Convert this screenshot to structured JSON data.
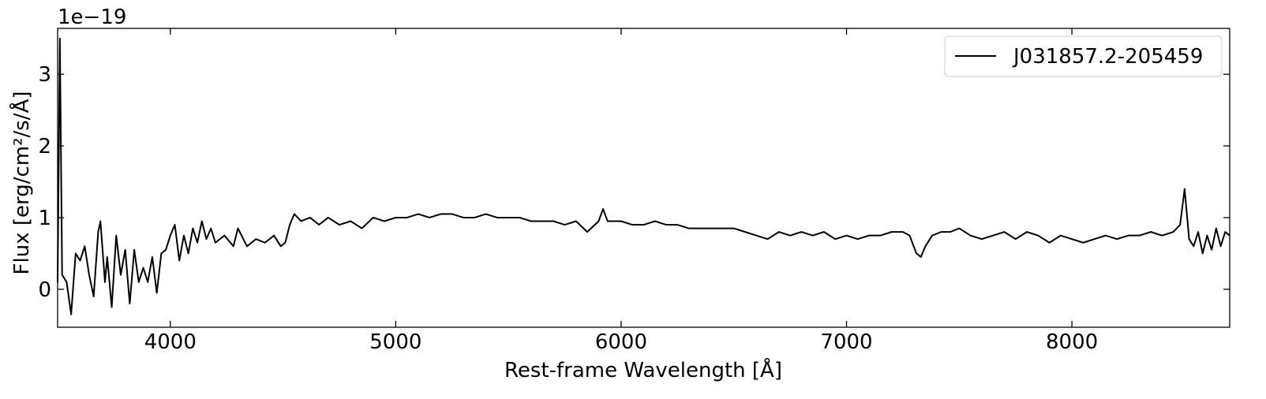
{
  "chart_data": {
    "type": "line",
    "x_label": "Rest-frame Wavelength [Å]",
    "y_label": "Flux [erg/cm²/s/Å]",
    "y_offset_text": "1e−19",
    "x": [
      3500,
      3510,
      3520,
      3540,
      3560,
      3580,
      3600,
      3620,
      3640,
      3660,
      3680,
      3690,
      3710,
      3720,
      3740,
      3760,
      3780,
      3800,
      3820,
      3840,
      3860,
      3880,
      3900,
      3920,
      3940,
      3960,
      3980,
      4000,
      4020,
      4040,
      4060,
      4080,
      4100,
      4120,
      4140,
      4160,
      4180,
      4200,
      4240,
      4280,
      4300,
      4340,
      4380,
      4420,
      4460,
      4490,
      4510,
      4530,
      4550,
      4580,
      4620,
      4660,
      4700,
      4750,
      4800,
      4850,
      4900,
      4950,
      5000,
      5050,
      5100,
      5150,
      5200,
      5250,
      5300,
      5350,
      5400,
      5450,
      5500,
      5550,
      5600,
      5650,
      5700,
      5750,
      5800,
      5850,
      5900,
      5920,
      5940,
      6000,
      6050,
      6100,
      6150,
      6200,
      6250,
      6300,
      6350,
      6400,
      6450,
      6500,
      6550,
      6600,
      6650,
      6700,
      6750,
      6800,
      6850,
      6900,
      6950,
      7000,
      7050,
      7100,
      7150,
      7200,
      7250,
      7280,
      7310,
      7330,
      7350,
      7380,
      7420,
      7460,
      7500,
      7550,
      7600,
      7650,
      7700,
      7750,
      7800,
      7850,
      7900,
      7950,
      8000,
      8050,
      8100,
      8150,
      8200,
      8250,
      8300,
      8350,
      8400,
      8450,
      8480,
      8500,
      8520,
      8540,
      8560,
      8580,
      8600,
      8620,
      8640,
      8660,
      8680,
      8700
    ],
    "series": [
      {
        "name": "J031857.2-205459",
        "color": "#000000",
        "values": [
          0.1,
          3.5,
          0.2,
          0.1,
          -0.35,
          0.5,
          0.4,
          0.6,
          0.2,
          -0.1,
          0.8,
          0.95,
          0.1,
          0.45,
          -0.25,
          0.75,
          0.2,
          0.55,
          -0.2,
          0.55,
          0.1,
          0.3,
          0.1,
          0.45,
          -0.05,
          0.5,
          0.55,
          0.75,
          0.9,
          0.4,
          0.75,
          0.5,
          0.85,
          0.65,
          0.95,
          0.7,
          0.85,
          0.65,
          0.75,
          0.6,
          0.85,
          0.6,
          0.7,
          0.65,
          0.75,
          0.6,
          0.65,
          0.9,
          1.05,
          0.95,
          1.0,
          0.9,
          1.0,
          0.9,
          0.95,
          0.85,
          1.0,
          0.95,
          1.0,
          1.0,
          1.05,
          1.0,
          1.05,
          1.05,
          1.0,
          1.0,
          1.05,
          1.0,
          1.0,
          1.0,
          0.95,
          0.95,
          0.95,
          0.9,
          0.95,
          0.8,
          0.95,
          1.12,
          0.95,
          0.95,
          0.9,
          0.9,
          0.95,
          0.9,
          0.9,
          0.85,
          0.85,
          0.85,
          0.85,
          0.85,
          0.8,
          0.75,
          0.7,
          0.8,
          0.75,
          0.8,
          0.75,
          0.8,
          0.7,
          0.75,
          0.7,
          0.75,
          0.75,
          0.8,
          0.8,
          0.75,
          0.5,
          0.45,
          0.6,
          0.75,
          0.8,
          0.8,
          0.85,
          0.75,
          0.7,
          0.75,
          0.8,
          0.7,
          0.8,
          0.75,
          0.65,
          0.75,
          0.7,
          0.65,
          0.7,
          0.75,
          0.7,
          0.75,
          0.75,
          0.8,
          0.75,
          0.8,
          0.9,
          1.4,
          0.7,
          0.6,
          0.8,
          0.5,
          0.75,
          0.55,
          0.85,
          0.6,
          0.8,
          0.75
        ]
      }
    ],
    "xlim": [
      3500,
      8700
    ],
    "ylim": [
      -0.53,
      3.64
    ],
    "xticks": [
      4000,
      5000,
      6000,
      7000,
      8000
    ],
    "yticks": [
      0,
      1,
      2,
      3
    ],
    "legend": "upper right",
    "grid": false
  }
}
